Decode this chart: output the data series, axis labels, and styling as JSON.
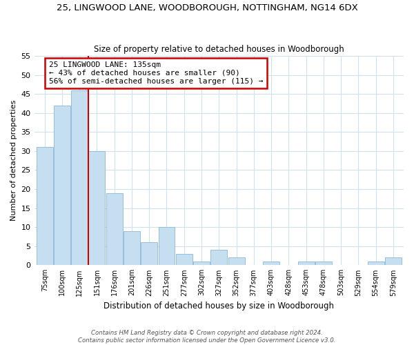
{
  "title1": "25, LINGWOOD LANE, WOODBOROUGH, NOTTINGHAM, NG14 6DX",
  "title2": "Size of property relative to detached houses in Woodborough",
  "xlabel": "Distribution of detached houses by size in Woodborough",
  "ylabel": "Number of detached properties",
  "bin_labels": [
    "75sqm",
    "100sqm",
    "125sqm",
    "151sqm",
    "176sqm",
    "201sqm",
    "226sqm",
    "251sqm",
    "277sqm",
    "302sqm",
    "327sqm",
    "352sqm",
    "377sqm",
    "403sqm",
    "428sqm",
    "453sqm",
    "478sqm",
    "503sqm",
    "529sqm",
    "554sqm",
    "579sqm"
  ],
  "bar_values": [
    31,
    42,
    46,
    30,
    19,
    9,
    6,
    10,
    3,
    1,
    4,
    2,
    0,
    1,
    0,
    1,
    1,
    0,
    0,
    1,
    2
  ],
  "bar_color": "#c5dff0",
  "bar_edge_color": "#8ab8d8",
  "vline_x_idx": 2,
  "vline_color": "#cc0000",
  "annotation_title": "25 LINGWOOD LANE: 135sqm",
  "annotation_line1": "← 43% of detached houses are smaller (90)",
  "annotation_line2": "56% of semi-detached houses are larger (115) →",
  "annotation_box_color": "#ffffff",
  "annotation_box_edge": "#cc0000",
  "ylim": [
    0,
    55
  ],
  "yticks": [
    0,
    5,
    10,
    15,
    20,
    25,
    30,
    35,
    40,
    45,
    50,
    55
  ],
  "footer1": "Contains HM Land Registry data © Crown copyright and database right 2024.",
  "footer2": "Contains public sector information licensed under the Open Government Licence v3.0.",
  "bg_color": "#ffffff",
  "grid_color": "#d0e0ec"
}
